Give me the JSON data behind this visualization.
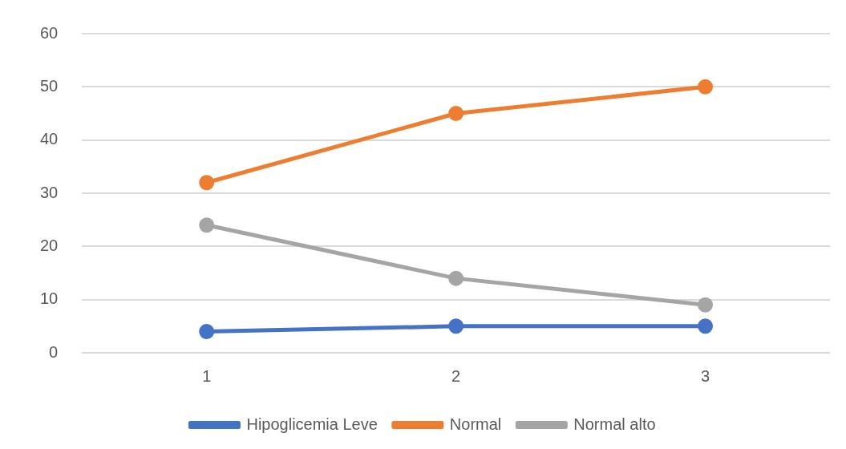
{
  "chart_data": {
    "type": "line",
    "categories": [
      "1",
      "2",
      "3"
    ],
    "series": [
      {
        "name": "Hipoglicemia Leve",
        "color": "#4472c4",
        "values": [
          4,
          5,
          5
        ]
      },
      {
        "name": "Normal",
        "color": "#ed7d31",
        "values": [
          32,
          45,
          50
        ]
      },
      {
        "name": "Normal alto",
        "color": "#a5a5a5",
        "values": [
          24,
          14,
          9
        ]
      }
    ],
    "ylim": [
      0,
      60
    ],
    "yticks": [
      0,
      10,
      20,
      30,
      40,
      50,
      60
    ],
    "grid": "y",
    "legend": "bottom",
    "marker": "circle",
    "line_style": "solid"
  }
}
